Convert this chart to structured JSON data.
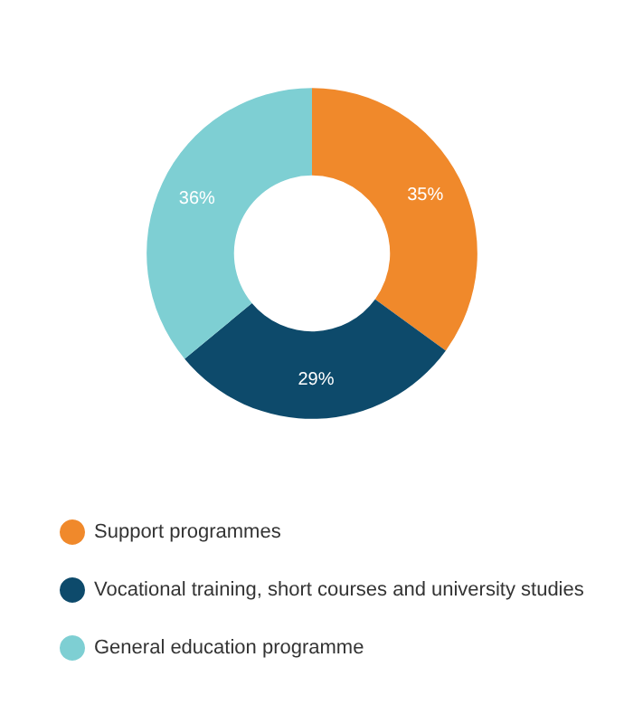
{
  "chart_data": {
    "type": "donut",
    "categories": [
      "Support programmes",
      "Vocational training, short courses and university studies",
      "General education programme"
    ],
    "values": [
      35,
      29,
      36
    ],
    "colors": [
      "#f0892b",
      "#0d4a6b",
      "#7ecfd3"
    ],
    "value_labels": [
      "35%",
      "29%",
      "36%"
    ],
    "legend": "bottom"
  }
}
